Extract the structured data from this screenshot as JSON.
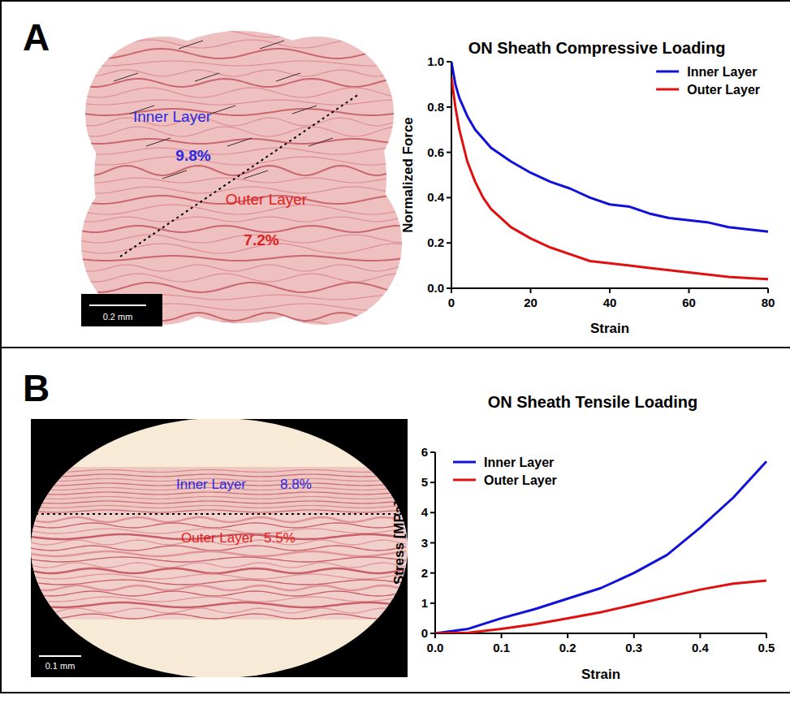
{
  "chart_data": [
    {
      "type": "line",
      "title": "ON Sheath Compressive Loading",
      "x_label": "Strain",
      "y_label": "Normalized Force",
      "x": [
        0,
        1,
        2,
        4,
        6,
        8,
        10,
        15,
        20,
        25,
        30,
        35,
        40,
        45,
        50,
        55,
        60,
        65,
        70,
        75,
        80
      ],
      "series": [
        {
          "name": "Inner Layer",
          "color": "#1010d8",
          "values": [
            1.0,
            0.9,
            0.84,
            0.76,
            0.7,
            0.66,
            0.62,
            0.56,
            0.51,
            0.47,
            0.44,
            0.4,
            0.37,
            0.36,
            0.33,
            0.31,
            0.3,
            0.29,
            0.27,
            0.26,
            0.25
          ]
        },
        {
          "name": "Outer Layer",
          "color": "#e01010",
          "values": [
            0.93,
            0.8,
            0.7,
            0.56,
            0.47,
            0.4,
            0.35,
            0.27,
            0.22,
            0.18,
            0.15,
            0.12,
            0.11,
            0.1,
            0.09,
            0.08,
            0.07,
            0.06,
            0.05,
            0.045,
            0.04
          ]
        }
      ],
      "xlim": [
        0,
        80
      ],
      "xticks": [
        0,
        20,
        40,
        60,
        80
      ],
      "ylim": [
        0,
        1
      ],
      "yticks": [
        {
          "value": 0,
          "label": "0.0"
        },
        0.2,
        0.4,
        0.6,
        0.8,
        {
          "value": 1,
          "label": "1.0"
        }
      ],
      "legend": "upper right",
      "grid": false
    },
    {
      "type": "line",
      "title": "ON Sheath Tensile Loading",
      "x_label": "Strain",
      "y_label": "Stress [MPa]",
      "x": [
        0,
        0.05,
        0.1,
        0.15,
        0.2,
        0.25,
        0.3,
        0.35,
        0.4,
        0.45,
        0.5
      ],
      "series": [
        {
          "name": "Inner Layer",
          "color": "#1010d8",
          "values": [
            0,
            0.15,
            0.5,
            0.8,
            1.15,
            1.5,
            2.0,
            2.6,
            3.5,
            4.5,
            5.7
          ]
        },
        {
          "name": "Outer Layer",
          "color": "#e01010",
          "values": [
            0,
            0.02,
            0.15,
            0.3,
            0.5,
            0.7,
            0.95,
            1.2,
            1.45,
            1.65,
            1.75
          ]
        }
      ],
      "xlim": [
        0,
        0.5
      ],
      "xticks": [
        {
          "value": 0,
          "label": "0.0"
        },
        0.1,
        0.2,
        0.3,
        0.4,
        0.5
      ],
      "ylim": [
        0,
        6
      ],
      "yticks": [
        0,
        1,
        2,
        3,
        4,
        5,
        6
      ],
      "legend": "upper left",
      "grid": false
    }
  ],
  "panels": [
    {
      "letter": "A",
      "image": {
        "labels": [
          {
            "text": "Inner Layer",
            "value": "9.8%",
            "color": "#2a2ae0"
          },
          {
            "text": "Outer Layer",
            "value": "7.2%",
            "color": "#e02020"
          }
        ],
        "scale_bar": "0.2 mm"
      }
    },
    {
      "letter": "B",
      "image": {
        "labels": [
          {
            "text": "Inner Layer",
            "value": "8.8%",
            "color": "#2a2ae0"
          },
          {
            "text": "Outer Layer",
            "value": "5.5%",
            "color": "#e02020"
          }
        ],
        "scale_bar": "0.1 mm"
      }
    }
  ]
}
